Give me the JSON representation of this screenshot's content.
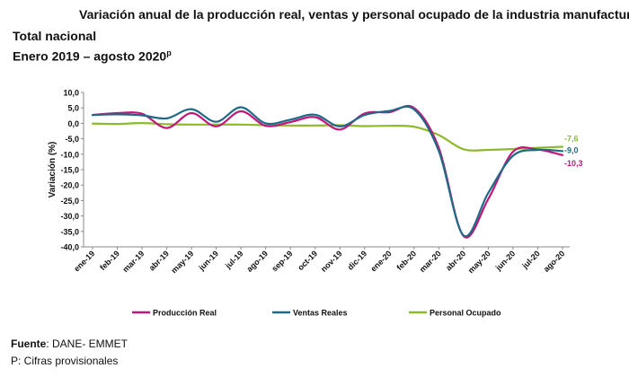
{
  "title": "Variación anual de la producción real, ventas y personal ocupado de la industria manufacturera",
  "subtitle1": "Total nacional",
  "subtitle2": "Enero 2019 – agosto 2020",
  "subtitle2_sup": "p",
  "footer": {
    "source_label": "Fuente",
    "source_text": ": DANE- EMMET",
    "note": "P: Cifras provisionales"
  },
  "chart_data": {
    "type": "line",
    "ylabel": "Variación (%)",
    "ylim": [
      -40,
      10
    ],
    "yticks": [
      "10,0",
      "5,0",
      "0,0",
      "-5,0",
      "-10,0",
      "-15,0",
      "-20,0",
      "-25,0",
      "-30,0",
      "-35,0",
      "-40,0"
    ],
    "categories": [
      "ene-19",
      "feb-19",
      "mar-19",
      "abr-19",
      "may-19",
      "jun-19",
      "jul-19",
      "ago-19",
      "sep-19",
      "oct-19",
      "nov-19",
      "dic-19",
      "ene-20",
      "feb-20",
      "mar-20",
      "abr-20",
      "may-20",
      "jun-20",
      "jul-20",
      "ago-20"
    ],
    "series": [
      {
        "name": "Producción Real",
        "color": "#c0177a",
        "values": [
          2.7,
          3.3,
          3.1,
          -1.5,
          3.3,
          -1.0,
          3.9,
          -0.8,
          0.4,
          2.0,
          -2.0,
          3.2,
          3.6,
          5.0,
          -8.0,
          -36.5,
          -24.5,
          -9.2,
          -8.5,
          -10.3
        ],
        "end_label": "-10,3"
      },
      {
        "name": "Ventas Reales",
        "color": "#1f6b87",
        "values": [
          2.7,
          2.9,
          2.6,
          1.6,
          4.6,
          0.5,
          5.2,
          0.0,
          1.2,
          2.8,
          -1.0,
          2.7,
          4.0,
          4.5,
          -9.0,
          -36.3,
          -22.5,
          -10.5,
          -8.6,
          -9.0
        ],
        "end_label": "-9,0"
      },
      {
        "name": "Personal Ocupado",
        "color": "#8dba2c",
        "values": [
          -0.1,
          -0.2,
          0.1,
          -0.3,
          -0.4,
          -0.4,
          -0.4,
          -0.6,
          -0.7,
          -0.7,
          -0.6,
          -0.9,
          -0.8,
          -1.1,
          -3.8,
          -8.4,
          -8.6,
          -8.3,
          -7.9,
          -7.6
        ],
        "end_label": "-7,6"
      }
    ]
  }
}
